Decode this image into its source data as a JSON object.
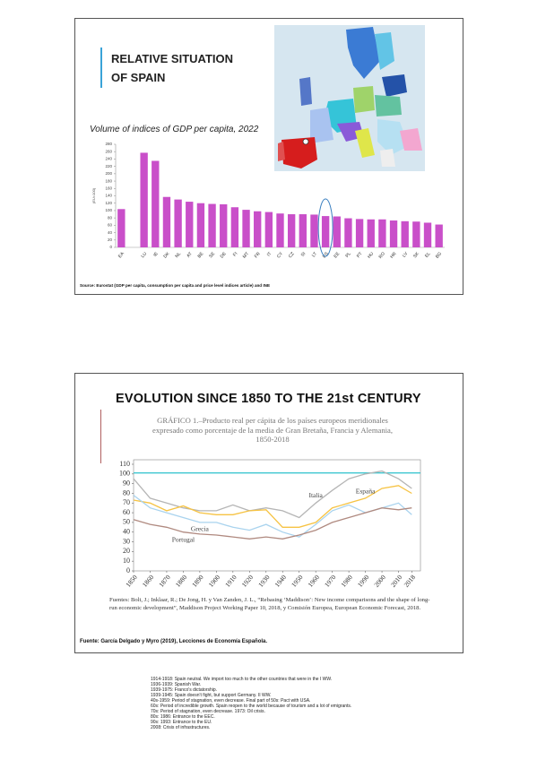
{
  "slides": [
    {
      "title": [
        "RELATIVE SITUATION",
        "OF SPAIN"
      ],
      "source": "Source: Eurostat (GDP per capita, consumption per capita and price level indices article) and INE"
    },
    {
      "title": "EVOLUTION SINCE 1850 TO THE 21st CENTURY",
      "citation": "Fuentes: Bolt, J.; Inklaar, R.; De Jong, H. y Van Zanden, J. L., “Rebasing ‘Maddison’: New income comparisons and the shape of long-run economic development”, Maddison Project Working Paper 10, 2018, y Comisión Europea, European Economic Forecast, 2018.",
      "source": "Fuente: García Delgado y Myro (2019), Lecciones de Economía Española."
    }
  ],
  "chart_data": [
    {
      "type": "bar",
      "title": "Volume of indices of GDP per capita, 2022",
      "y_label": "(EU=100)",
      "categories": [
        "EA",
        null,
        "LU",
        "IE",
        "DK",
        "NL",
        "AT",
        "BE",
        "SE",
        "DE",
        "FI",
        "MT",
        "FR",
        "IT",
        "CY",
        "CZ",
        "SI",
        "LT",
        "ES",
        "EE",
        "PL",
        "PT",
        "HU",
        "RO",
        "HR",
        "LV",
        "SK",
        "EL",
        "BG"
      ],
      "values": [
        104,
        null,
        257,
        235,
        137,
        130,
        124,
        120,
        118,
        117,
        109,
        102,
        98,
        96,
        92,
        90,
        90,
        89,
        85,
        84,
        79,
        77,
        76,
        76,
        73,
        71,
        70,
        67,
        62
      ],
      "color": "#c94fc9",
      "ylim": [
        0,
        280
      ],
      "yticks": [
        0,
        20,
        40,
        60,
        80,
        100,
        120,
        140,
        160,
        180,
        200,
        220,
        240,
        260,
        280
      ]
    },
    {
      "type": "line",
      "title": [
        "GRÁFICO 1.–Producto real per cápita de los países europeos meridionales",
        "expresado como porcentaje de la media de Gran Bretaña, Francia y Alemania,",
        "1850-2018"
      ],
      "x": [
        1850,
        1860,
        1870,
        1880,
        1890,
        1900,
        1910,
        1920,
        1930,
        1940,
        1950,
        1960,
        1970,
        1980,
        1990,
        2000,
        2010,
        2018
      ],
      "series": [
        {
          "name": "Italia",
          "color": "#b5b5b5",
          "values": [
            95,
            75,
            70,
            65,
            62,
            62,
            68,
            62,
            65,
            62,
            55,
            70,
            83,
            95,
            100,
            103,
            95,
            85
          ]
        },
        {
          "name": "España",
          "color": "#f6c343",
          "values": [
            73,
            70,
            62,
            67,
            60,
            58,
            58,
            62,
            63,
            45,
            45,
            50,
            65,
            70,
            75,
            85,
            88,
            80
          ]
        },
        {
          "name": "Grecia",
          "color": "#a9d3ee",
          "values": [
            78,
            65,
            60,
            55,
            50,
            50,
            45,
            42,
            48,
            40,
            35,
            48,
            62,
            68,
            60,
            65,
            70,
            58
          ]
        },
        {
          "name": "Portugal",
          "color": "#b08a80",
          "values": [
            53,
            48,
            45,
            40,
            38,
            37,
            35,
            33,
            35,
            33,
            37,
            42,
            50,
            55,
            60,
            65,
            63,
            65
          ]
        }
      ],
      "hlines": [
        {
          "value": 101,
          "color": "#3ec7d0"
        }
      ],
      "xlim": [
        1850,
        2020
      ],
      "xticks": [
        1850,
        1860,
        1870,
        1880,
        1890,
        1900,
        1910,
        1920,
        1930,
        1940,
        1950,
        1960,
        1970,
        1980,
        1990,
        2000,
        2010,
        2018
      ],
      "ylim": [
        0,
        110
      ],
      "yticks": [
        0,
        10,
        20,
        30,
        40,
        50,
        60,
        70,
        80,
        90,
        100,
        110
      ]
    }
  ],
  "notes": [
    "1914-1918: Spain neutral. We import too much to the other countries that were in the I WW.",
    "1936-1939: Spanish War.",
    "1939-1975: Franco's dictatorship.",
    "1939-1945: Spain doesn't fight, but support Germany. II WW.",
    "40s-1959: Period of stagnation, even decrease. Final part of 50s: Pact with USA.",
    "60s: Period of incredible growth. Spain reopen to the world because of tourism and a lot of emigrants.",
    "70s: Period of stagnation, even decrease. 1973: Oil crisis.",
    "80s: 1986: Entrance to the EEC.",
    "90s: 1993: Entrance to the EU.",
    "2008: Crisis of infrastructures."
  ]
}
